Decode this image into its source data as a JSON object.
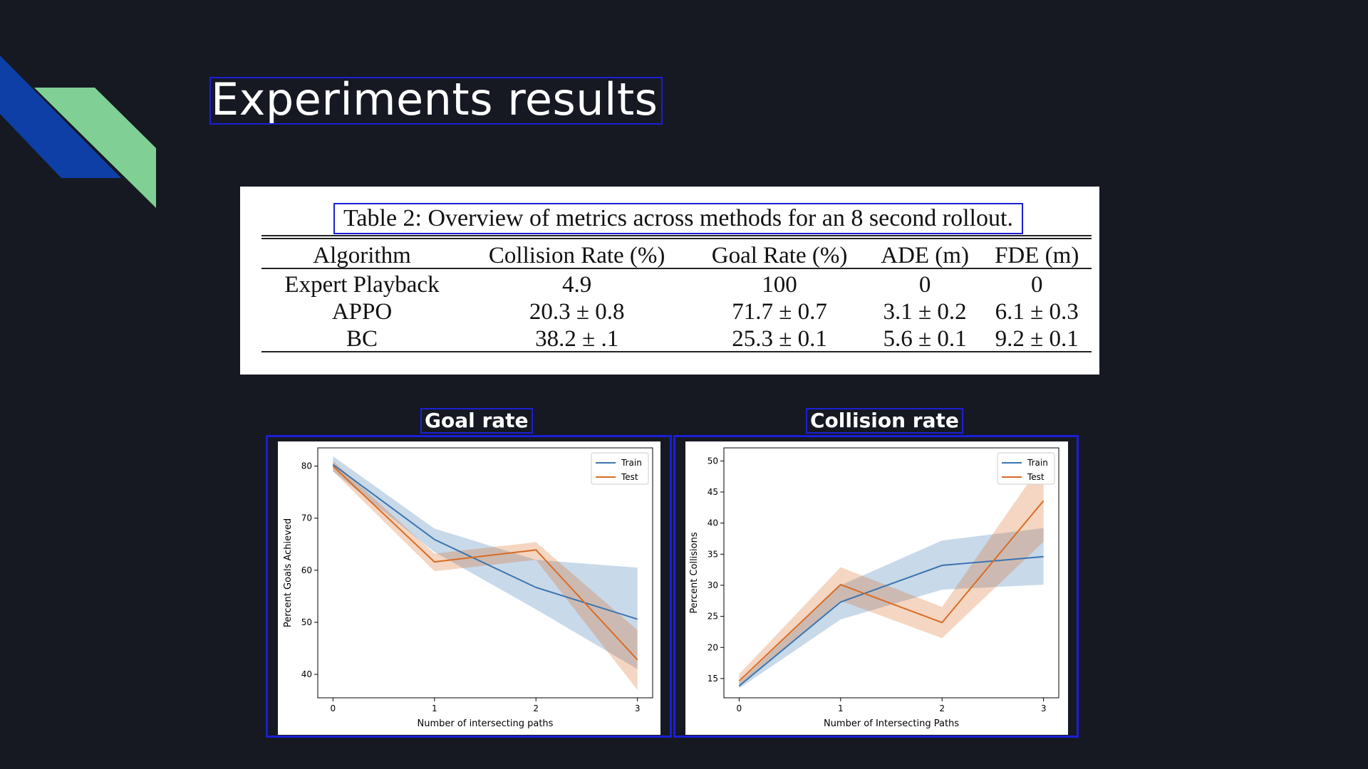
{
  "slide": {
    "title": "Experiments results",
    "accent_colors": [
      "#0d3fa6",
      "#80d095"
    ]
  },
  "table": {
    "caption": "Table 2: Overview of metrics across methods for an 8 second rollout.",
    "columns": [
      "Algorithm",
      "Collision Rate (%)",
      "Goal Rate (%)",
      "ADE (m)",
      "FDE (m)"
    ],
    "rows": [
      [
        "Expert Playback",
        "4.9",
        "100",
        "0",
        "0"
      ],
      [
        "APPO",
        "20.3 ± 0.8",
        "71.7 ± 0.7",
        "3.1 ± 0.2",
        "6.1 ± 0.3"
      ],
      [
        "BC",
        "38.2 ± .1",
        "25.3 ± 0.1",
        "5.6 ± 0.1",
        "9.2 ± 0.1"
      ]
    ]
  },
  "plots": {
    "goal": {
      "title": "Goal rate"
    },
    "collision": {
      "title": "Collision rate"
    }
  },
  "chart_data": [
    {
      "type": "line",
      "title": "",
      "xlabel": "Number of intersecting paths",
      "ylabel": "Percent Goals Achieved",
      "x": [
        0,
        1,
        2,
        3
      ],
      "xticks": [
        0,
        1,
        2,
        3
      ],
      "yticks": [
        40,
        50,
        60,
        70,
        80
      ],
      "xlim": [
        -0.15,
        3.15
      ],
      "ylim": [
        35.5,
        83.5
      ],
      "grid": false,
      "legend": "top-right",
      "series": [
        {
          "name": "Train",
          "color": "#3b75af",
          "values": [
            80.3,
            65.9,
            56.7,
            50.6
          ],
          "lower": [
            79.0,
            63.5,
            52.5,
            41.0
          ],
          "upper": [
            81.9,
            68.0,
            62.0,
            60.5
          ]
        },
        {
          "name": "Test",
          "color": "#d86c25",
          "values": [
            80.0,
            61.6,
            63.9,
            42.8
          ],
          "lower": [
            79.0,
            59.8,
            62.0,
            37.0
          ],
          "upper": [
            81.0,
            63.2,
            65.4,
            48.5
          ]
        }
      ]
    },
    {
      "type": "line",
      "title": "",
      "xlabel": "Number of Intersecting Paths",
      "ylabel": "Percent Collisions",
      "x": [
        0,
        1,
        2,
        3
      ],
      "xticks": [
        0,
        1,
        2,
        3
      ],
      "yticks": [
        15,
        20,
        25,
        30,
        35,
        40,
        45,
        50
      ],
      "xlim": [
        -0.15,
        3.15
      ],
      "ylim": [
        11.9,
        52.1
      ],
      "grid": false,
      "legend": "top-right",
      "series": [
        {
          "name": "Train",
          "color": "#3b75af",
          "values": [
            13.8,
            27.3,
            33.2,
            34.6
          ],
          "lower": [
            13.4,
            24.5,
            29.3,
            30.1
          ],
          "upper": [
            14.3,
            30.0,
            37.2,
            39.2
          ]
        },
        {
          "name": "Test",
          "color": "#d86c25",
          "values": [
            14.6,
            30.1,
            24.0,
            43.6
          ],
          "lower": [
            13.7,
            27.5,
            21.5,
            37.0
          ],
          "upper": [
            15.7,
            32.9,
            26.5,
            50.0
          ]
        }
      ]
    }
  ]
}
